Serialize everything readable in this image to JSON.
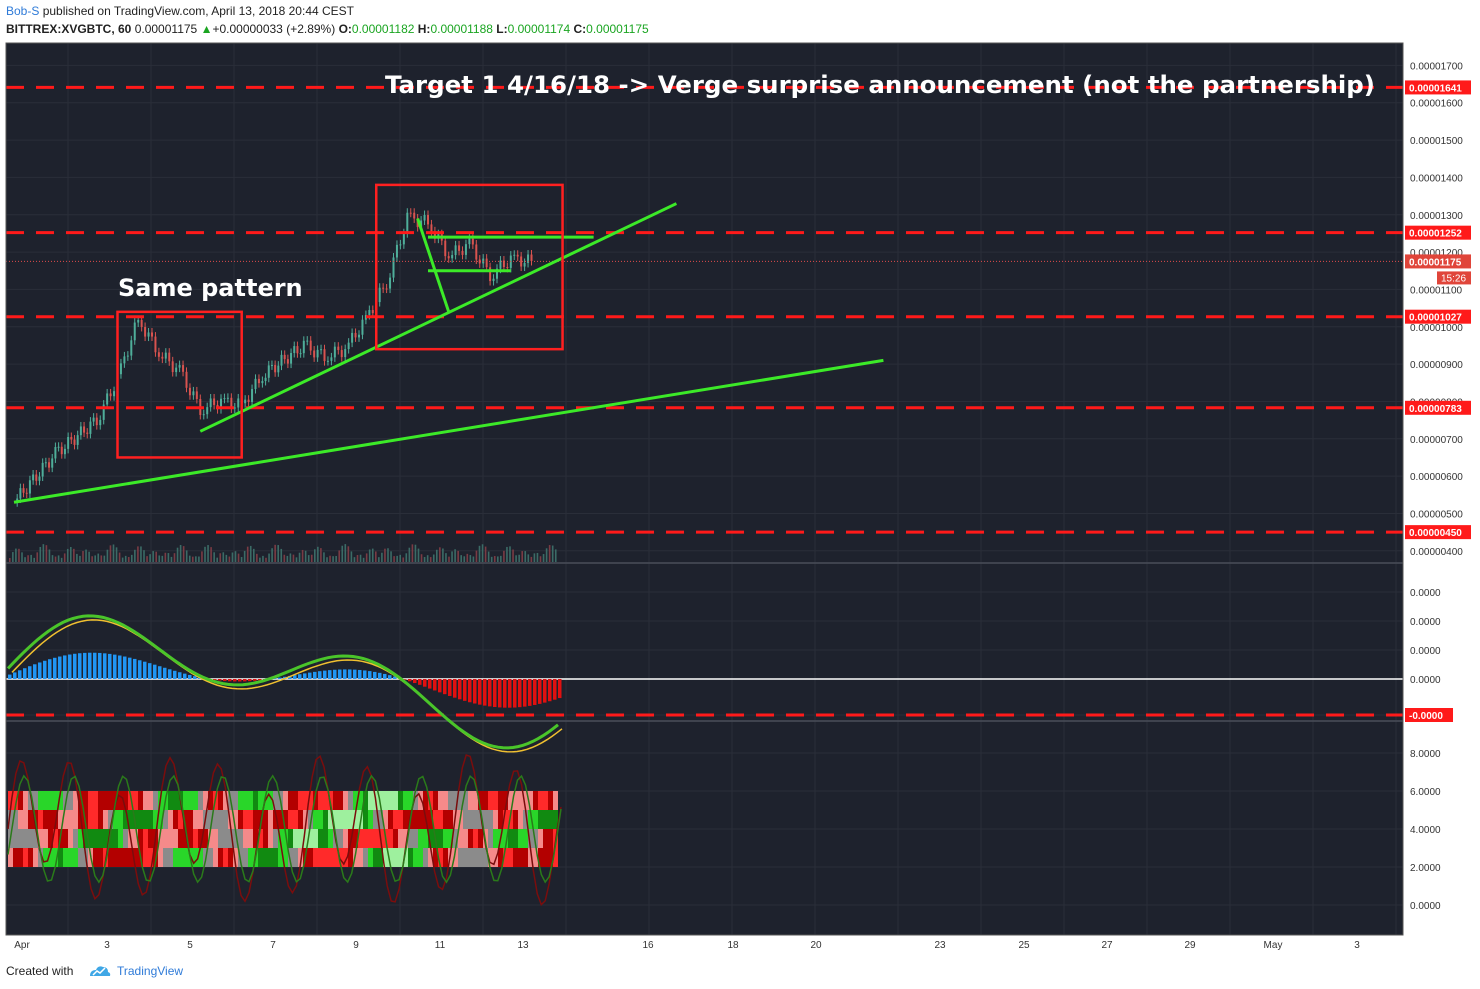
{
  "header": {
    "author": "Bob-S",
    "published_text": " published on TradingView.com, April 13, 2018 20:44 CEST",
    "symbol": "BITTREX:XVGBTC, 60",
    "last": "0.00001175",
    "change_arrow": "▲",
    "change": "+0.00000033 (+2.89%)",
    "o_label": "O:",
    "o_value": "0.00001182",
    "h_label": "H:",
    "h_value": "0.00001188",
    "l_label": "L:",
    "l_value": "0.00001174",
    "c_label": "C:",
    "c_value": "0.00001175"
  },
  "footer": {
    "created_with": "Created with",
    "brand": "TradingView",
    "logo_icon": "tradingview-cloud-icon"
  },
  "colors": {
    "background": "#1e222d",
    "grid": "#2a2e39",
    "level_red": "#ff1a1a",
    "trend_green": "#3cea28",
    "annotation_box": "#ff2020",
    "annotation_text": "#ffffff"
  },
  "chart_data": {
    "type": "line",
    "title": "",
    "x_ticks": [
      "Apr",
      "3",
      "5",
      "7",
      "9",
      "11",
      "13",
      "16",
      "18",
      "20",
      "23",
      "25",
      "27",
      "29",
      "May",
      "3"
    ],
    "price_pane": {
      "y_ticks": [
        "0.00001700",
        "0.00001600",
        "0.00001500",
        "0.00001400",
        "0.00001300",
        "0.00001200",
        "0.00001100",
        "0.00001000",
        "0.00000900",
        "0.00000800",
        "0.00000700",
        "0.00000600",
        "0.00000500",
        "0.00000400"
      ],
      "ylim": [
        3.7e-06,
        1.76e-05
      ],
      "levels": [
        {
          "label": "0.00001641",
          "value": 1.641e-05
        },
        {
          "label": "0.00001252",
          "value": 1.252e-05
        },
        {
          "label": "0.00001027",
          "value": 1.027e-05
        },
        {
          "label": "0.00000783",
          "value": 7.83e-06
        },
        {
          "label": "0.00000450",
          "value": 4.5e-06
        }
      ],
      "current_price": {
        "label": "0.00001175",
        "value": 1.175e-05
      },
      "countdown": "15:26",
      "candle_closes": [
        {
          "date": "2018-04-01",
          "close": 5.3e-06
        },
        {
          "date": "2018-04-02",
          "close": 6.6e-06
        },
        {
          "date": "2018-04-03",
          "close": 7.5e-06
        },
        {
          "date": "2018-04-03 12:00",
          "close": 8.6e-06
        },
        {
          "date": "2018-04-04",
          "close": 1.02e-05
        },
        {
          "date": "2018-04-04 12:00",
          "close": 9.3e-06
        },
        {
          "date": "2018-04-05",
          "close": 8.8e-06
        },
        {
          "date": "2018-04-05 12:00",
          "close": 7.8e-06
        },
        {
          "date": "2018-04-06",
          "close": 8e-06
        },
        {
          "date": "2018-04-06 12:00",
          "close": 7.9e-06
        },
        {
          "date": "2018-04-07",
          "close": 8.7e-06
        },
        {
          "date": "2018-04-08",
          "close": 9.5e-06
        },
        {
          "date": "2018-04-08 12:00",
          "close": 9.2e-06
        },
        {
          "date": "2018-04-09",
          "close": 9.4e-06
        },
        {
          "date": "2018-04-09 12:00",
          "close": 1.02e-05
        },
        {
          "date": "2018-04-10",
          "close": 1.12e-05
        },
        {
          "date": "2018-04-10 12:00",
          "close": 1.29e-05
        },
        {
          "date": "2018-04-11",
          "close": 1.28e-05
        },
        {
          "date": "2018-04-11 12:00",
          "close": 1.19e-05
        },
        {
          "date": "2018-04-12",
          "close": 1.22e-05
        },
        {
          "date": "2018-04-12 12:00",
          "close": 1.14e-05
        },
        {
          "date": "2018-04-13",
          "close": 1.18e-05
        },
        {
          "date": "2018-04-13 12:00",
          "close": 1.175e-05
        }
      ],
      "trendlines": [
        {
          "from": [
            "2018-04-01",
            5.3e-06
          ],
          "to": [
            "2018-04-22",
            9.1e-06
          ]
        },
        {
          "from": [
            "2018-04-05 12:00",
            7.2e-06
          ],
          "to": [
            "2018-04-17",
            1.33e-05
          ]
        },
        {
          "from": [
            "2018-04-10 18:00",
            1.29e-05
          ],
          "to": [
            "2018-04-11 12:00",
            1.04e-05
          ]
        },
        {
          "from": [
            "2018-04-11",
            1.15e-05
          ],
          "to": [
            "2018-04-13",
            1.15e-05
          ]
        },
        {
          "from": [
            "2018-04-11",
            1.24e-05
          ],
          "to": [
            "2018-04-15",
            1.24e-05
          ]
        }
      ],
      "annotations": [
        {
          "text": "Target 1 4/16/18 -> Verge surprise announcement (not the partnership)"
        },
        {
          "text": "Same pattern"
        }
      ]
    },
    "oscillator_pane": {
      "y_ticks": [
        "0.0000",
        "0.0000",
        "0.0000",
        "0.0000",
        "-0.0000"
      ],
      "level_label": "-0.0000"
    },
    "indicator_pane": {
      "y_ticks": [
        "8.0000",
        "6.0000",
        "4.0000",
        "2.0000",
        "0.0000"
      ],
      "ylim": [
        -0.5,
        9
      ]
    }
  }
}
